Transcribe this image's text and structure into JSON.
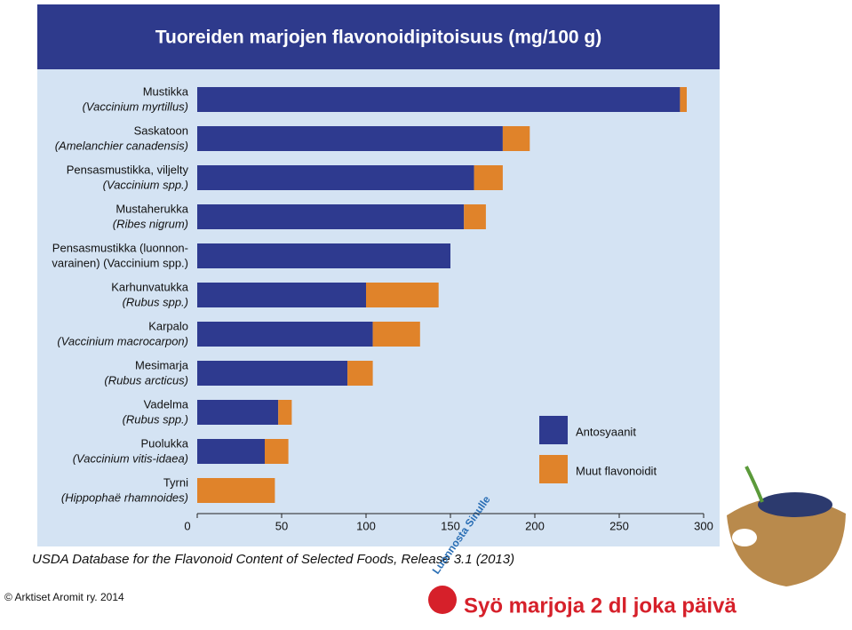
{
  "chart_data": {
    "type": "bar",
    "orientation": "horizontal",
    "stacked": true,
    "title": "Tuoreiden marjojen flavonoidipitoisuus (mg/100 g)",
    "categories": [
      [
        "Mustikka",
        "(Vaccinium myrtillus)"
      ],
      [
        "Saskatoon",
        "(Amelanchier canadensis)"
      ],
      [
        "Pensasmustikka, viljelty",
        "(Vaccinium spp.)"
      ],
      [
        "Mustaherukka",
        "(Ribes nigrum)"
      ],
      [
        "Pensasmustikka (luonnon-",
        "varainen) (Vaccinium spp.)"
      ],
      [
        "Karhunvatukka",
        "(Rubus spp.)"
      ],
      [
        "Karpalo",
        "(Vaccinium macrocarpon)"
      ],
      [
        "Mesimarja",
        "(Rubus arcticus)"
      ],
      [
        "Vadelma",
        "(Rubus  spp.)"
      ],
      [
        "Puolukka",
        "(Vaccinium vitis-idaea)"
      ],
      [
        "Tyrni",
        "(Hippophaë rhamnoides)"
      ]
    ],
    "series": [
      {
        "name": "Antosyaanit",
        "color": "#2e3a8f",
        "values": [
          286,
          181,
          164,
          158,
          150,
          100,
          104,
          89,
          48,
          40,
          0
        ]
      },
      {
        "name": "Muut flavonoidit",
        "color": "#e0832a",
        "values": [
          4,
          16,
          17,
          13,
          0,
          43,
          28,
          15,
          8,
          14,
          46
        ]
      }
    ],
    "xlim": [
      0,
      300
    ],
    "xticks": [
      0,
      50,
      100,
      150,
      200,
      250,
      300
    ],
    "grid": false,
    "legend": "lower right"
  },
  "source": "USDA Database for the Flavonoid Content of Selected Foods, Release 3.1 (2013)",
  "copyright": "© Arktiset Aromit ry. 2014",
  "logo": {
    "arc": "Luonnosta Sinulle",
    "slogan": "Syö marjoja 2 dl joka päivä"
  }
}
